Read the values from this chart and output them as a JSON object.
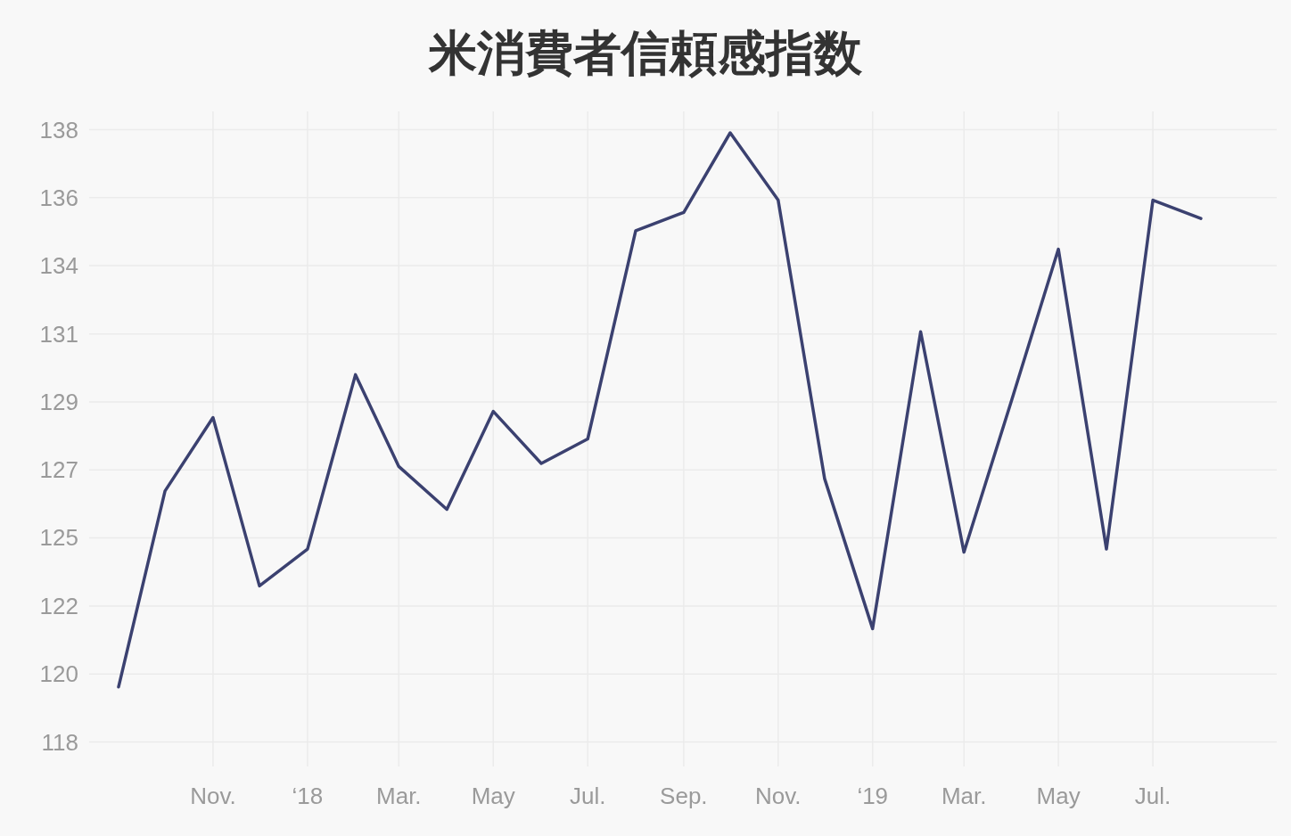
{
  "chart_data": {
    "type": "line",
    "title": "米消費者信頼感指数",
    "x": [
      "2017-09",
      "2017-10",
      "2017-11",
      "2017-12",
      "2018-01",
      "2018-02",
      "2018-03",
      "2018-04",
      "2018-05",
      "2018-06",
      "2018-07",
      "2018-08",
      "2018-09",
      "2018-10",
      "2018-11",
      "2018-12",
      "2019-01",
      "2019-02",
      "2019-03",
      "2019-04",
      "2019-05",
      "2019-06",
      "2019-07",
      "2019-08"
    ],
    "series": [
      {
        "color": "#3b4170",
        "values": [
          119.8,
          126.2,
          128.6,
          123.1,
          124.3,
          130.0,
          127.0,
          125.6,
          128.8,
          127.1,
          127.9,
          134.7,
          135.3,
          137.9,
          135.7,
          126.6,
          121.7,
          131.4,
          124.2,
          129.2,
          134.1,
          124.3,
          135.7,
          135.1
        ]
      }
    ],
    "xlim": [
      "2017-08-13",
      "2019-09-19"
    ],
    "xticks": [
      {
        "value": "2017-11",
        "label": "Nov."
      },
      {
        "value": "2018-01",
        "label": "‘18"
      },
      {
        "value": "2018-03",
        "label": "Mar."
      },
      {
        "value": "2018-05",
        "label": "May"
      },
      {
        "value": "2018-07",
        "label": "Jul."
      },
      {
        "value": "2018-09",
        "label": "Sep."
      },
      {
        "value": "2018-11",
        "label": "Nov."
      },
      {
        "value": "2019-01",
        "label": "‘19"
      },
      {
        "value": "2019-03",
        "label": "Mar."
      },
      {
        "value": "2019-05",
        "label": "May"
      },
      {
        "value": "2019-07",
        "label": "Jul."
      }
    ],
    "ylim": [
      117.2,
      138.6
    ],
    "yticks": [
      118,
      {
        "value": 120.22,
        "label": "120"
      },
      {
        "value": 122.44,
        "label": "122"
      },
      {
        "value": 124.67,
        "label": "125"
      },
      {
        "value": 126.89,
        "label": "127"
      },
      {
        "value": 129.11,
        "label": "129"
      },
      {
        "value": 131.33,
        "label": "131"
      },
      {
        "value": 133.56,
        "label": "134"
      },
      {
        "value": 135.78,
        "label": "136"
      },
      138
    ],
    "grid": true,
    "marker": "none",
    "line_style": "solid"
  }
}
